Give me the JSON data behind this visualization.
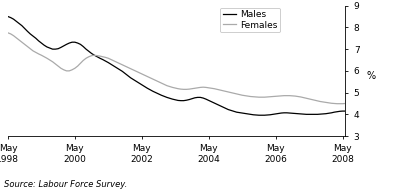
{
  "title": "",
  "xlabel": "",
  "ylabel": "%",
  "source": "Source: Labour Force Survey.",
  "ylim": [
    3,
    9
  ],
  "yticks": [
    3,
    4,
    5,
    6,
    7,
    8,
    9
  ],
  "x_tick_labels": [
    "May\n1998",
    "May\n2000",
    "May\n2002",
    "May\n2004",
    "May\n2006",
    "May\n2008"
  ],
  "x_tick_positions": [
    0,
    24,
    48,
    72,
    96,
    120
  ],
  "males_color": "#000000",
  "females_color": "#aaaaaa",
  "legend_labels": [
    "Males",
    "Females"
  ],
  "males_data": [
    8.5,
    8.45,
    8.38,
    8.28,
    8.18,
    8.08,
    7.95,
    7.82,
    7.7,
    7.6,
    7.5,
    7.38,
    7.28,
    7.18,
    7.1,
    7.05,
    7.0,
    7.0,
    7.02,
    7.08,
    7.15,
    7.22,
    7.28,
    7.32,
    7.32,
    7.28,
    7.22,
    7.12,
    7.0,
    6.9,
    6.8,
    6.72,
    6.65,
    6.58,
    6.52,
    6.45,
    6.38,
    6.3,
    6.22,
    6.14,
    6.06,
    5.98,
    5.88,
    5.78,
    5.68,
    5.6,
    5.52,
    5.44,
    5.36,
    5.28,
    5.2,
    5.13,
    5.06,
    5.0,
    4.94,
    4.88,
    4.83,
    4.78,
    4.74,
    4.7,
    4.67,
    4.64,
    4.63,
    4.63,
    4.65,
    4.68,
    4.72,
    4.76,
    4.78,
    4.78,
    4.75,
    4.7,
    4.64,
    4.58,
    4.52,
    4.46,
    4.4,
    4.34,
    4.28,
    4.22,
    4.18,
    4.14,
    4.1,
    4.08,
    4.06,
    4.04,
    4.02,
    4.0,
    3.98,
    3.97,
    3.96,
    3.96,
    3.96,
    3.97,
    3.98,
    4.0,
    4.02,
    4.04,
    4.06,
    4.07,
    4.07,
    4.06,
    4.05,
    4.04,
    4.03,
    4.02,
    4.01,
    4.0,
    4.0,
    4.0,
    4.0,
    4.0,
    4.01,
    4.02,
    4.03,
    4.05,
    4.07,
    4.1,
    4.12,
    4.14,
    4.15,
    4.15
  ],
  "females_data": [
    7.75,
    7.7,
    7.62,
    7.52,
    7.42,
    7.32,
    7.22,
    7.12,
    7.02,
    6.92,
    6.85,
    6.78,
    6.72,
    6.65,
    6.58,
    6.5,
    6.42,
    6.32,
    6.22,
    6.12,
    6.05,
    6.0,
    6.0,
    6.05,
    6.12,
    6.22,
    6.35,
    6.48,
    6.58,
    6.65,
    6.7,
    6.72,
    6.7,
    6.68,
    6.65,
    6.62,
    6.58,
    6.52,
    6.46,
    6.4,
    6.34,
    6.28,
    6.22,
    6.16,
    6.1,
    6.04,
    5.98,
    5.92,
    5.86,
    5.8,
    5.74,
    5.68,
    5.62,
    5.56,
    5.5,
    5.44,
    5.38,
    5.32,
    5.28,
    5.24,
    5.21,
    5.18,
    5.16,
    5.15,
    5.15,
    5.16,
    5.18,
    5.2,
    5.22,
    5.24,
    5.25,
    5.24,
    5.22,
    5.2,
    5.18,
    5.15,
    5.12,
    5.09,
    5.06,
    5.03,
    5.0,
    4.97,
    4.94,
    4.91,
    4.88,
    4.86,
    4.84,
    4.82,
    4.81,
    4.8,
    4.79,
    4.79,
    4.79,
    4.8,
    4.81,
    4.82,
    4.83,
    4.84,
    4.85,
    4.86,
    4.86,
    4.86,
    4.85,
    4.84,
    4.82,
    4.8,
    4.77,
    4.74,
    4.71,
    4.68,
    4.65,
    4.62,
    4.59,
    4.57,
    4.55,
    4.53,
    4.51,
    4.5,
    4.49,
    4.49,
    4.49,
    4.5
  ]
}
